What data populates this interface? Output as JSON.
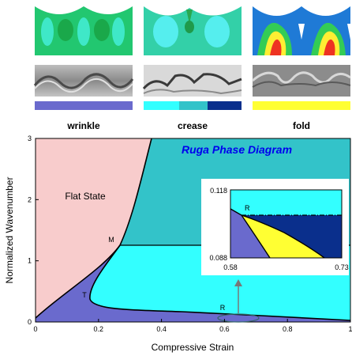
{
  "panel_labels": [
    "wrinkle",
    "crease",
    "fold"
  ],
  "diagram": {
    "title": "Ruga Phase Diagram",
    "xlabel": "Compressive Strain",
    "ylabel": "Normalized Wavenumber",
    "x_ticks": [
      "0",
      "0.2",
      "0.4",
      "0.6",
      "0.8",
      "1"
    ],
    "y_ticks": [
      "0",
      "1",
      "2",
      "3"
    ],
    "xlim": [
      0,
      1
    ],
    "ylim": [
      0,
      3
    ],
    "region_label": "Flat State",
    "points": {
      "M": "M",
      "T": "T",
      "R": "R"
    }
  },
  "inset": {
    "x_ticks": [
      "0.58",
      "0.73"
    ],
    "y_ticks": [
      "0.118",
      "0.088"
    ],
    "xlim": [
      0.58,
      0.73
    ],
    "ylim": [
      0.088,
      0.118
    ],
    "point": "R"
  },
  "colors": {
    "flat": "#f8cccc",
    "wrinkle": "#6a6acd",
    "crease_light": "#33ffff",
    "crease_mid": "#33c3c9",
    "crease_dark": "#0a2f8c",
    "fold": "#ffff33",
    "title": "#0000ee"
  }
}
